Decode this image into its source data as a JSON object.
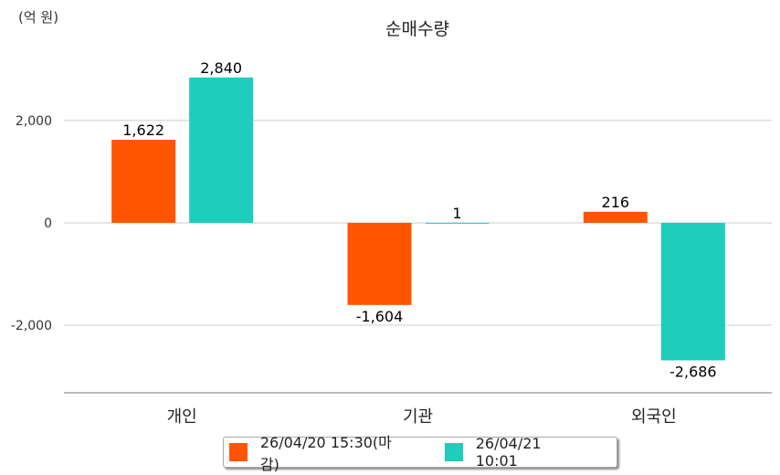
{
  "chart_data": {
    "type": "bar",
    "title": "순매수량",
    "unit_label": "(억 원)",
    "categories": [
      "개인",
      "기관",
      "외국인"
    ],
    "series": [
      {
        "name": "26/04/20 15:30(마감)",
        "color": "#ff5500",
        "values": [
          1622,
          -1604,
          216
        ],
        "labels": [
          "1,622",
          "-1,604",
          "216"
        ]
      },
      {
        "name": "26/04/21 10:01",
        "color": "#1ecdbb",
        "values": [
          2840,
          1,
          -2686
        ],
        "labels": [
          "2,840",
          "1",
          "-2,686"
        ]
      }
    ],
    "yticks": [
      -2000,
      0,
      2000
    ],
    "ytick_labels": [
      "-2,000",
      "0",
      "2,000"
    ],
    "ylim": [
      -3320,
      3640
    ],
    "grid": true,
    "legend_position": "bottom"
  }
}
